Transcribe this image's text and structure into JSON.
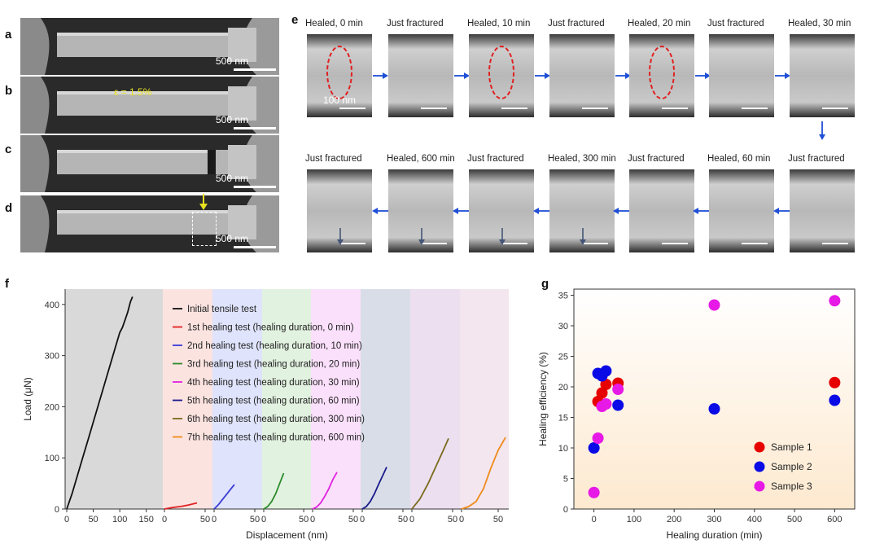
{
  "panels": {
    "a": "a",
    "b": "b",
    "c": "c",
    "d": "d",
    "e": "e",
    "f": "f",
    "g": "g"
  },
  "left_scale": "500 nm",
  "strain_label": "ε = 1.5%",
  "e_scale": "100 nm",
  "e_row1": [
    "Healed, 0 min",
    "Just fractured",
    "Healed, 10 min",
    "Just fractured",
    "Healed, 20 min",
    "Just fractured",
    "Healed, 30 min"
  ],
  "e_row2": [
    "Just fractured",
    "Healed, 600 min",
    "Just fractured",
    "Healed, 300 min",
    "Just fractured",
    "Healed, 60 min",
    "Just fractured"
  ],
  "colors": {
    "arrow_blue": "#1f4fd6",
    "ellipse_red": "#e02020",
    "yellow": "#e8e020"
  },
  "chart_data": [
    {
      "type": "line",
      "xlabel": "Displacement (nm)",
      "ylabel": "Load (μN)",
      "ylim": [
        0,
        430
      ],
      "yticks": [
        0,
        100,
        200,
        300,
        400
      ],
      "segment_xticks": [
        [
          "0",
          "50",
          "100",
          "150"
        ],
        [
          "0",
          "50"
        ],
        [
          "0",
          "50"
        ],
        [
          "0",
          "50"
        ],
        [
          "0",
          "50"
        ],
        [
          "0",
          "50"
        ],
        [
          "0",
          "50"
        ],
        [
          "0",
          "50"
        ]
      ],
      "series": [
        {
          "name": "Initial tensile test",
          "color": "#111111",
          "x": [
            0,
            10,
            20,
            30,
            40,
            50,
            60,
            70,
            80,
            90,
            100,
            105,
            110,
            115,
            120,
            124
          ],
          "y": [
            0,
            30,
            65,
            100,
            135,
            170,
            205,
            240,
            275,
            310,
            345,
            355,
            370,
            385,
            405,
            415
          ]
        },
        {
          "name": "1st healing test (healing duration, 0 min)",
          "color": "#e02020",
          "x": [
            0,
            10,
            20,
            30,
            40
          ],
          "y": [
            0,
            3,
            5,
            8,
            12
          ]
        },
        {
          "name": "2nd healing test (healing duration, 10 min)",
          "color": "#3a3ad8",
          "x": [
            0,
            5,
            10,
            15,
            20,
            25
          ],
          "y": [
            0,
            8,
            18,
            28,
            38,
            48
          ]
        },
        {
          "name": "3rd healing test (healing duration, 20 min)",
          "color": "#2e8b2e",
          "x": [
            0,
            5,
            10,
            15,
            20,
            25
          ],
          "y": [
            0,
            5,
            15,
            30,
            50,
            70
          ]
        },
        {
          "name": "4th healing test (healing duration, 30 min)",
          "color": "#e020e0",
          "x": [
            0,
            5,
            10,
            15,
            20,
            25,
            30
          ],
          "y": [
            0,
            4,
            12,
            25,
            40,
            58,
            72
          ]
        },
        {
          "name": "5th healing test (healing duration, 60 min)",
          "color": "#1a1a8c",
          "x": [
            0,
            5,
            10,
            15,
            20,
            25,
            30
          ],
          "y": [
            0,
            5,
            15,
            30,
            48,
            65,
            82
          ]
        },
        {
          "name": "6th healing test (healing duration, 300 min)",
          "color": "#7a6a1a",
          "x": [
            0,
            10,
            20,
            30,
            40,
            45
          ],
          "y": [
            0,
            20,
            50,
            85,
            120,
            138
          ]
        },
        {
          "name": "7th healing test (healing duration, 600 min)",
          "color": "#f08a1a",
          "x": [
            0,
            10,
            20,
            30,
            40,
            50,
            60
          ],
          "y": [
            0,
            5,
            15,
            40,
            80,
            115,
            140
          ]
        }
      ],
      "legend": "top-right"
    },
    {
      "type": "scatter",
      "xlabel": "Healing duration (min)",
      "ylabel": "Healing efficiency (%)",
      "xlim": [
        -50,
        650
      ],
      "ylim": [
        0,
        36
      ],
      "xticks": [
        0,
        100,
        200,
        300,
        400,
        500,
        600
      ],
      "yticks": [
        0,
        5,
        10,
        15,
        20,
        25,
        30,
        35
      ],
      "series": [
        {
          "name": "Sample 1",
          "color": "#e60000",
          "x": [
            10,
            20,
            30,
            60,
            600
          ],
          "y": [
            17.6,
            19.0,
            20.4,
            20.6,
            20.7
          ]
        },
        {
          "name": "Sample 2",
          "color": "#0a0ae6",
          "x": [
            0,
            10,
            20,
            30,
            60,
            300,
            600
          ],
          "y": [
            10.0,
            22.2,
            21.8,
            22.6,
            17.0,
            16.4,
            17.8
          ]
        },
        {
          "name": "Sample 3",
          "color": "#e619e6",
          "x": [
            0,
            10,
            20,
            30,
            60,
            300,
            600
          ],
          "y": [
            2.7,
            11.6,
            16.8,
            17.2,
            19.6,
            33.4,
            34.1
          ]
        }
      ],
      "legend": "bottom-right"
    }
  ]
}
